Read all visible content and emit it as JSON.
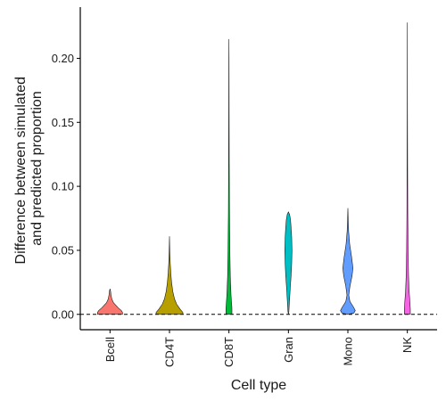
{
  "chart_data": {
    "type": "violin",
    "title": "",
    "xlabel": "Cell type",
    "ylabel_lines": [
      "Difference between simulated",
      "and predicted proportion"
    ],
    "categories": [
      "Bcell",
      "CD4T",
      "CD8T",
      "Gran",
      "Mono",
      "NK"
    ],
    "ylim": [
      -0.012,
      0.24
    ],
    "y_ticks": [
      0.0,
      0.05,
      0.1,
      0.15,
      0.2
    ],
    "y_tick_labels": [
      "0.00",
      "0.05",
      "0.10",
      "0.15",
      "0.20"
    ],
    "reference_line": {
      "y": 0.0,
      "style": "dashed"
    },
    "grid": false,
    "legend": "none",
    "violins": [
      {
        "name": "Bcell",
        "color": "#F8766D",
        "profile": [
          [
            0.0,
            0.42
          ],
          [
            0.0015,
            0.42
          ],
          [
            0.003,
            0.38
          ],
          [
            0.005,
            0.28
          ],
          [
            0.007,
            0.2
          ],
          [
            0.009,
            0.12
          ],
          [
            0.012,
            0.06
          ],
          [
            0.015,
            0.035
          ],
          [
            0.018,
            0.02
          ],
          [
            0.02,
            0.0
          ]
        ]
      },
      {
        "name": "CD4T",
        "color": "#B79F00",
        "profile": [
          [
            0.0,
            0.45
          ],
          [
            0.0015,
            0.45
          ],
          [
            0.004,
            0.36
          ],
          [
            0.008,
            0.24
          ],
          [
            0.012,
            0.17
          ],
          [
            0.018,
            0.11
          ],
          [
            0.025,
            0.07
          ],
          [
            0.032,
            0.045
          ],
          [
            0.04,
            0.025
          ],
          [
            0.05,
            0.01
          ],
          [
            0.061,
            0.0
          ]
        ]
      },
      {
        "name": "CD8T",
        "color": "#00BA38",
        "profile": [
          [
            0.0,
            0.1
          ],
          [
            0.005,
            0.1
          ],
          [
            0.015,
            0.07
          ],
          [
            0.03,
            0.045
          ],
          [
            0.05,
            0.03
          ],
          [
            0.08,
            0.018
          ],
          [
            0.12,
            0.01
          ],
          [
            0.16,
            0.006
          ],
          [
            0.2,
            0.003
          ],
          [
            0.215,
            0.0
          ]
        ]
      },
      {
        "name": "Gran",
        "color": "#00BFC4",
        "profile": [
          [
            0.0,
            0.0
          ],
          [
            0.002,
            0.015
          ],
          [
            0.01,
            0.035
          ],
          [
            0.02,
            0.06
          ],
          [
            0.03,
            0.09
          ],
          [
            0.04,
            0.11
          ],
          [
            0.05,
            0.12
          ],
          [
            0.06,
            0.11
          ],
          [
            0.068,
            0.09
          ],
          [
            0.074,
            0.07
          ],
          [
            0.078,
            0.04
          ],
          [
            0.08,
            0.0
          ]
        ]
      },
      {
        "name": "Mono",
        "color": "#619CFF",
        "profile": [
          [
            0.0,
            0.0
          ],
          [
            0.001,
            0.2
          ],
          [
            0.003,
            0.25
          ],
          [
            0.006,
            0.18
          ],
          [
            0.01,
            0.07
          ],
          [
            0.015,
            0.03
          ],
          [
            0.022,
            0.07
          ],
          [
            0.03,
            0.14
          ],
          [
            0.036,
            0.17
          ],
          [
            0.044,
            0.13
          ],
          [
            0.055,
            0.06
          ],
          [
            0.065,
            0.025
          ],
          [
            0.075,
            0.01
          ],
          [
            0.083,
            0.0
          ]
        ]
      },
      {
        "name": "NK",
        "color": "#F564E3",
        "profile": [
          [
            0.0,
            0.1
          ],
          [
            0.004,
            0.1
          ],
          [
            0.01,
            0.085
          ],
          [
            0.018,
            0.06
          ],
          [
            0.03,
            0.04
          ],
          [
            0.05,
            0.025
          ],
          [
            0.08,
            0.014
          ],
          [
            0.12,
            0.008
          ],
          [
            0.16,
            0.004
          ],
          [
            0.2,
            0.002
          ],
          [
            0.228,
            0.0
          ]
        ]
      }
    ]
  }
}
